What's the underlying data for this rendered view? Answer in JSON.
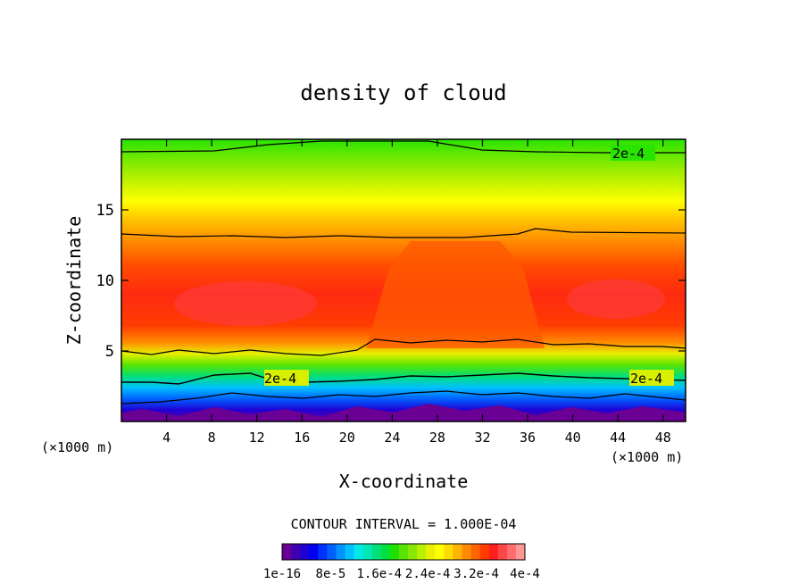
{
  "chart_data": {
    "type": "heatmap",
    "title": "density of cloud",
    "xlabel": "X-coordinate",
    "ylabel": "Z-coordinate",
    "x_unit_note_left": "(×1000 m)",
    "x_unit_note_right": "(×1000 m)",
    "xlim": [
      0,
      50
    ],
    "ylim": [
      0,
      20
    ],
    "x_ticks": [
      4,
      8,
      12,
      16,
      20,
      24,
      28,
      32,
      36,
      40,
      44,
      48
    ],
    "x_tick_labels": [
      "4",
      "8",
      "12",
      "16",
      "20",
      "24",
      "28",
      "32",
      "36",
      "40",
      "44",
      "48"
    ],
    "y_ticks": [
      5,
      10,
      15
    ],
    "y_tick_labels": [
      "5",
      "10",
      "15"
    ],
    "contour_interval": "CONTOUR INTERVAL = 1.000E-04",
    "contour_labels": [
      {
        "text": "2e-4",
        "x": 43.5,
        "z": 19
      },
      {
        "text": "2e-4",
        "x": 14.5,
        "z": 3.2
      },
      {
        "text": "2e-4",
        "x": 46.0,
        "z": 3.1
      }
    ],
    "colorbar_labels": [
      "1e-16",
      "8e-5",
      "1.6e-4",
      "2.4e-4",
      "3.2e-4",
      "4e-4"
    ],
    "colorbar_colors": [
      "#6a0094",
      "#3c00b0",
      "#2000d4",
      "#0000f0",
      "#0030ff",
      "#0060ff",
      "#0090ff",
      "#00c0ff",
      "#00e8e8",
      "#00e8b4",
      "#00e078",
      "#00e040",
      "#20e000",
      "#58e400",
      "#88e800",
      "#b8f000",
      "#e8f000",
      "#ffff00",
      "#ffdc00",
      "#ffb400",
      "#ff8c00",
      "#ff6400",
      "#ff3c00",
      "#ff1e1e",
      "#ff4646",
      "#ff6e6e",
      "#ff9696"
    ]
  }
}
